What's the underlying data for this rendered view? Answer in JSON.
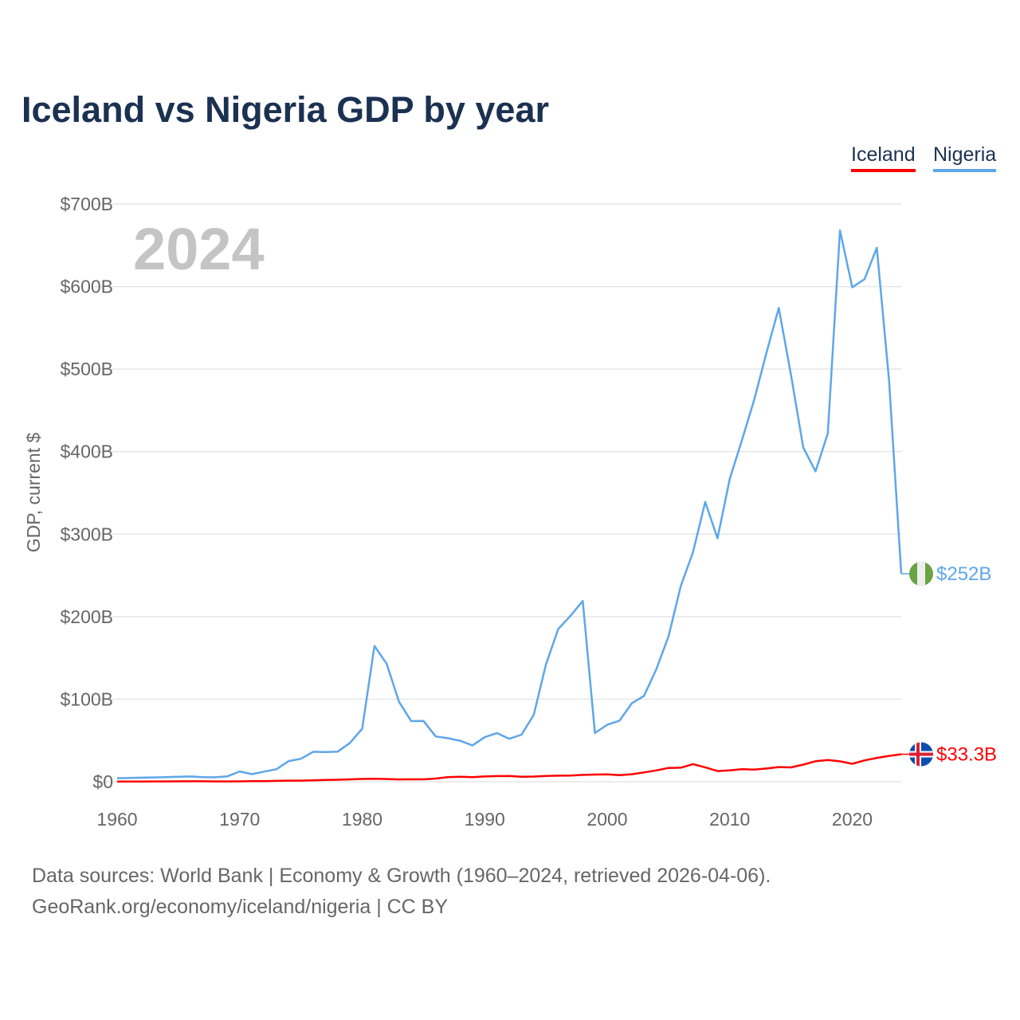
{
  "title": "Iceland vs Nigeria GDP by year",
  "chart_data": {
    "type": "line",
    "title": "Iceland vs Nigeria GDP by year",
    "ylabel": "GDP, current $",
    "xlabel": "",
    "year_watermark": "2024",
    "xlim": [
      1960,
      2024
    ],
    "ylim": [
      0,
      700
    ],
    "x_ticks": [
      1960,
      1970,
      1980,
      1990,
      2000,
      2010,
      2020
    ],
    "y_ticks": [
      0,
      100,
      200,
      300,
      400,
      500,
      600,
      700
    ],
    "y_tick_labels": [
      "$0",
      "$100B",
      "$200B",
      "$300B",
      "$400B",
      "$500B",
      "$600B",
      "$700B"
    ],
    "grid": true,
    "legend_position": "top-right",
    "units": "billions USD",
    "x": [
      1960,
      1961,
      1962,
      1963,
      1964,
      1965,
      1966,
      1967,
      1968,
      1969,
      1970,
      1971,
      1972,
      1973,
      1974,
      1975,
      1976,
      1977,
      1978,
      1979,
      1980,
      1981,
      1982,
      1983,
      1984,
      1985,
      1986,
      1987,
      1988,
      1989,
      1990,
      1991,
      1992,
      1993,
      1994,
      1995,
      1996,
      1997,
      1998,
      1999,
      2000,
      2001,
      2002,
      2003,
      2004,
      2005,
      2006,
      2007,
      2008,
      2009,
      2010,
      2011,
      2012,
      2013,
      2014,
      2015,
      2016,
      2017,
      2018,
      2019,
      2020,
      2021,
      2022,
      2023,
      2024
    ],
    "series": [
      {
        "name": "Iceland",
        "color": "#ff0000",
        "end_label": "$33.3B",
        "values": [
          0.25,
          0.26,
          0.29,
          0.34,
          0.41,
          0.49,
          0.58,
          0.56,
          0.42,
          0.39,
          0.5,
          0.64,
          0.79,
          1.06,
          1.35,
          1.39,
          1.7,
          2.26,
          2.45,
          2.86,
          3.4,
          3.6,
          3.3,
          2.8,
          2.9,
          2.9,
          3.9,
          5.6,
          6.0,
          5.6,
          6.4,
          6.9,
          7.0,
          6.1,
          6.3,
          7.0,
          7.3,
          7.4,
          8.3,
          8.7,
          8.9,
          8.0,
          9.1,
          11.3,
          13.7,
          16.7,
          17.0,
          21.3,
          17.5,
          12.9,
          13.7,
          15.2,
          14.7,
          16.0,
          17.8,
          17.4,
          20.8,
          24.8,
          26.3,
          24.7,
          21.7,
          25.9,
          28.9,
          31.3,
          33.3
        ]
      },
      {
        "name": "Nigeria",
        "color": "#5ea6ea",
        "end_label": "$252B",
        "values": [
          4.2,
          4.5,
          4.9,
          5.2,
          5.6,
          6.0,
          6.4,
          5.5,
          5.4,
          6.6,
          12.5,
          9.2,
          12.3,
          15.2,
          25.0,
          27.8,
          36.3,
          36.0,
          36.5,
          47.0,
          64.2,
          164.5,
          142.8,
          97.1,
          73.5,
          73.7,
          54.8,
          52.7,
          49.6,
          44.0,
          54.0,
          59.0,
          52.0,
          57.0,
          81.0,
          142.0,
          185.0,
          201.0,
          219.0,
          59.0,
          69.0,
          74.0,
          95.0,
          104.0,
          136.0,
          176.0,
          237.0,
          278.0,
          339.0,
          295.0,
          367.0,
          414.0,
          463.0,
          520.0,
          574.0,
          493.0,
          405.0,
          376.0,
          422.0,
          668.0,
          599.0,
          609.0,
          647.0,
          487.0,
          252.0
        ]
      }
    ]
  },
  "legend": {
    "iceland": "Iceland",
    "nigeria": "Nigeria"
  },
  "footer": {
    "line1": "Data sources: World Bank | Economy & Growth (1960–2024, retrieved 2026-04-06).",
    "line2": "GeoRank.org/economy/iceland/nigeria | CC BY"
  }
}
